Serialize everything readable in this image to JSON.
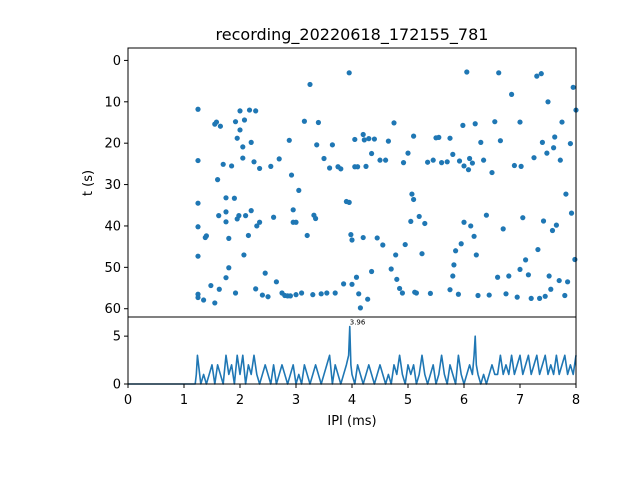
{
  "chart_data": [
    {
      "type": "scatter",
      "title": "recording_20220618_172155_781",
      "xlabel": "",
      "ylabel": "t (s)",
      "xlim": [
        0,
        8
      ],
      "ylim": [
        62,
        -3
      ],
      "y_inverted": true,
      "yticks": [
        0,
        10,
        20,
        30,
        40,
        50,
        60
      ],
      "yticklabels": [
        "0",
        "10",
        "20",
        "30",
        "40",
        "50",
        "60"
      ],
      "marker_color": "#1f77b4",
      "points": [
        [
          1.25,
          11.8
        ],
        [
          1.25,
          24.2
        ],
        [
          1.25,
          34.5
        ],
        [
          1.25,
          40.2
        ],
        [
          1.25,
          47.3
        ],
        [
          1.25,
          56.5
        ],
        [
          1.25,
          57.3
        ],
        [
          1.35,
          57.9
        ],
        [
          1.38,
          42.8
        ],
        [
          1.4,
          42.4
        ],
        [
          1.48,
          54.4
        ],
        [
          1.55,
          15.4
        ],
        [
          1.55,
          58.6
        ],
        [
          1.58,
          14.9
        ],
        [
          1.6,
          28.8
        ],
        [
          1.62,
          37.5
        ],
        [
          1.63,
          55.3
        ],
        [
          1.65,
          15.9
        ],
        [
          1.7,
          25.1
        ],
        [
          1.75,
          52.5
        ],
        [
          1.75,
          33.2
        ],
        [
          1.75,
          36.6
        ],
        [
          1.75,
          39.0
        ],
        [
          1.8,
          43.0
        ],
        [
          1.8,
          50.1
        ],
        [
          1.85,
          25.5
        ],
        [
          1.9,
          33.3
        ],
        [
          1.92,
          56.2
        ],
        [
          1.92,
          14.8
        ],
        [
          1.95,
          38.3
        ],
        [
          1.95,
          18.8
        ],
        [
          1.98,
          37.5
        ],
        [
          2.0,
          12.2
        ],
        [
          2.0,
          16.8
        ],
        [
          2.05,
          20.9
        ],
        [
          2.05,
          23.6
        ],
        [
          2.07,
          47.0
        ],
        [
          2.08,
          14.4
        ],
        [
          2.1,
          37.5
        ],
        [
          2.15,
          42.3
        ],
        [
          2.17,
          12.0
        ],
        [
          2.2,
          36.3
        ],
        [
          2.2,
          19.8
        ],
        [
          2.25,
          24.5
        ],
        [
          2.28,
          12.2
        ],
        [
          2.28,
          55.2
        ],
        [
          2.3,
          40.0
        ],
        [
          2.35,
          26.1
        ],
        [
          2.35,
          39.1
        ],
        [
          2.4,
          56.7
        ],
        [
          2.45,
          51.4
        ],
        [
          2.5,
          57.1
        ],
        [
          2.55,
          25.6
        ],
        [
          2.6,
          37.9
        ],
        [
          2.65,
          53.5
        ],
        [
          2.7,
          23.8
        ],
        [
          2.75,
          56.2
        ],
        [
          2.8,
          56.8
        ],
        [
          2.85,
          56.9
        ],
        [
          2.88,
          19.3
        ],
        [
          2.9,
          56.9
        ],
        [
          2.92,
          27.7
        ],
        [
          2.95,
          36.1
        ],
        [
          2.95,
          39.1
        ],
        [
          3.0,
          39.1
        ],
        [
          3.0,
          56.6
        ],
        [
          3.05,
          31.4
        ],
        [
          3.1,
          56.2
        ],
        [
          3.15,
          14.7
        ],
        [
          3.2,
          42.3
        ],
        [
          3.25,
          5.8
        ],
        [
          3.3,
          56.6
        ],
        [
          3.32,
          37.4
        ],
        [
          3.35,
          38.2
        ],
        [
          3.37,
          20.4
        ],
        [
          3.4,
          15.0
        ],
        [
          3.45,
          56.4
        ],
        [
          3.5,
          23.7
        ],
        [
          3.55,
          56.2
        ],
        [
          3.6,
          26.0
        ],
        [
          3.65,
          20.4
        ],
        [
          3.7,
          56.2
        ],
        [
          3.75,
          25.7
        ],
        [
          3.8,
          26.2
        ],
        [
          3.85,
          54.0
        ],
        [
          3.9,
          34.1
        ],
        [
          3.95,
          3.0
        ],
        [
          3.95,
          34.3
        ],
        [
          3.98,
          42.1
        ],
        [
          4.0,
          43.4
        ],
        [
          4.0,
          54.1
        ],
        [
          4.05,
          19.1
        ],
        [
          4.05,
          25.7
        ],
        [
          4.08,
          52.4
        ],
        [
          4.1,
          25.7
        ],
        [
          4.12,
          56.4
        ],
        [
          4.15,
          59.8
        ],
        [
          4.2,
          17.9
        ],
        [
          4.2,
          42.8
        ],
        [
          4.22,
          19.2
        ],
        [
          4.25,
          25.6
        ],
        [
          4.28,
          57.7
        ],
        [
          4.3,
          18.9
        ],
        [
          4.35,
          22.5
        ],
        [
          4.35,
          51.0
        ],
        [
          4.4,
          19.0
        ],
        [
          4.45,
          42.9
        ],
        [
          4.5,
          24.1
        ],
        [
          4.55,
          44.6
        ],
        [
          4.6,
          24.1
        ],
        [
          4.65,
          19.5
        ],
        [
          4.7,
          50.4
        ],
        [
          4.75,
          15.1
        ],
        [
          4.78,
          47.0
        ],
        [
          4.8,
          52.9
        ],
        [
          4.85,
          55.1
        ],
        [
          4.9,
          56.2
        ],
        [
          4.92,
          24.7
        ],
        [
          4.95,
          44.5
        ],
        [
          5.0,
          22.4
        ],
        [
          5.05,
          38.9
        ],
        [
          5.07,
          32.3
        ],
        [
          5.1,
          18.3
        ],
        [
          5.1,
          33.6
        ],
        [
          5.12,
          56.0
        ],
        [
          5.15,
          56.2
        ],
        [
          5.2,
          37.7
        ],
        [
          5.25,
          46.7
        ],
        [
          5.3,
          39.4
        ],
        [
          5.35,
          24.6
        ],
        [
          5.4,
          56.3
        ],
        [
          5.45,
          24.1
        ],
        [
          5.5,
          18.7
        ],
        [
          5.55,
          18.6
        ],
        [
          5.6,
          24.7
        ],
        [
          5.7,
          24.5
        ],
        [
          5.75,
          18.8
        ],
        [
          5.75,
          55.4
        ],
        [
          5.8,
          52.1
        ],
        [
          5.8,
          22.7
        ],
        [
          5.82,
          49.4
        ],
        [
          5.85,
          46.0
        ],
        [
          5.9,
          56.5
        ],
        [
          5.92,
          24.3
        ],
        [
          5.95,
          44.3
        ],
        [
          5.98,
          15.7
        ],
        [
          6.0,
          39.1
        ],
        [
          6.0,
          25.5
        ],
        [
          6.05,
          2.8
        ],
        [
          6.08,
          26.4
        ],
        [
          6.1,
          23.7
        ],
        [
          6.12,
          40.0
        ],
        [
          6.15,
          24.8
        ],
        [
          6.18,
          42.5
        ],
        [
          6.2,
          15.3
        ],
        [
          6.22,
          47.0
        ],
        [
          6.25,
          56.8
        ],
        [
          6.3,
          19.8
        ],
        [
          6.35,
          24.1
        ],
        [
          6.4,
          37.4
        ],
        [
          6.45,
          56.7
        ],
        [
          6.5,
          27.1
        ],
        [
          6.55,
          14.8
        ],
        [
          6.6,
          52.4
        ],
        [
          6.62,
          3.0
        ],
        [
          6.65,
          19.4
        ],
        [
          6.7,
          40.7
        ],
        [
          6.75,
          56.4
        ],
        [
          6.8,
          52.1
        ],
        [
          6.85,
          8.2
        ],
        [
          6.9,
          25.4
        ],
        [
          6.95,
          57.2
        ],
        [
          7.0,
          50.5
        ],
        [
          7.0,
          14.9
        ],
        [
          7.02,
          25.6
        ],
        [
          7.05,
          38.0
        ],
        [
          7.1,
          48.2
        ],
        [
          7.15,
          51.8
        ],
        [
          7.2,
          57.5
        ],
        [
          7.25,
          23.5
        ],
        [
          7.3,
          3.8
        ],
        [
          7.32,
          45.7
        ],
        [
          7.35,
          57.5
        ],
        [
          7.38,
          3.2
        ],
        [
          7.4,
          19.8
        ],
        [
          7.42,
          38.8
        ],
        [
          7.45,
          57.0
        ],
        [
          7.48,
          22.4
        ],
        [
          7.5,
          10.0
        ],
        [
          7.52,
          52.1
        ],
        [
          7.55,
          55.3
        ],
        [
          7.58,
          41.1
        ],
        [
          7.6,
          21.1
        ],
        [
          7.62,
          18.5
        ],
        [
          7.65,
          39.8
        ],
        [
          7.7,
          53.2
        ],
        [
          7.72,
          24.1
        ],
        [
          7.75,
          14.9
        ],
        [
          7.8,
          56.8
        ],
        [
          7.82,
          32.3
        ],
        [
          7.85,
          53.5
        ],
        [
          7.9,
          20.1
        ],
        [
          7.92,
          36.9
        ],
        [
          7.95,
          6.5
        ],
        [
          7.98,
          48.1
        ],
        [
          8.0,
          12.0
        ]
      ]
    },
    {
      "type": "line",
      "xlabel": "IPI (ms)",
      "ylabel": "",
      "xlim": [
        0,
        8
      ],
      "ylim": [
        0,
        7
      ],
      "xticks": [
        0,
        1,
        2,
        3,
        4,
        5,
        6,
        7,
        8
      ],
      "xticklabels": [
        "0",
        "1",
        "2",
        "3",
        "4",
        "5",
        "6",
        "7",
        "8"
      ],
      "yticks": [
        0,
        5
      ],
      "yticklabels": [
        "0",
        "5"
      ],
      "line_color": "#1f77b4",
      "peak_annotation": {
        "x": 3.96,
        "y": 6,
        "label": "3.96"
      },
      "series": [
        {
          "x": [
            0,
            1.2,
            1.22,
            1.24,
            1.26,
            1.28,
            1.3,
            1.35,
            1.4,
            1.45,
            1.5,
            1.55,
            1.6,
            1.65,
            1.7,
            1.75,
            1.8,
            1.85,
            1.9,
            1.95,
            2.0,
            2.05,
            2.1,
            2.15,
            2.2,
            2.25,
            2.3,
            2.35,
            2.4,
            2.45,
            2.5,
            2.55,
            2.6,
            2.65,
            2.7,
            2.75,
            2.8,
            2.85,
            2.9,
            2.95,
            3.0,
            3.05,
            3.1,
            3.15,
            3.2,
            3.25,
            3.3,
            3.35,
            3.4,
            3.45,
            3.5,
            3.55,
            3.6,
            3.65,
            3.7,
            3.75,
            3.8,
            3.85,
            3.9,
            3.94,
            3.96,
            3.98,
            4.0,
            4.05,
            4.1,
            4.15,
            4.2,
            4.25,
            4.3,
            4.35,
            4.4,
            4.45,
            4.5,
            4.55,
            4.6,
            4.65,
            4.7,
            4.75,
            4.8,
            4.85,
            4.9,
            4.95,
            5.0,
            5.05,
            5.1,
            5.15,
            5.2,
            5.25,
            5.3,
            5.35,
            5.4,
            5.45,
            5.5,
            5.55,
            5.6,
            5.65,
            5.7,
            5.75,
            5.8,
            5.85,
            5.9,
            5.95,
            6.0,
            6.05,
            6.1,
            6.15,
            6.18,
            6.2,
            6.22,
            6.25,
            6.3,
            6.35,
            6.4,
            6.45,
            6.5,
            6.55,
            6.6,
            6.65,
            6.7,
            6.75,
            6.8,
            6.85,
            6.9,
            6.95,
            7.0,
            7.05,
            7.1,
            7.15,
            7.2,
            7.25,
            7.3,
            7.35,
            7.4,
            7.45,
            7.5,
            7.55,
            7.6,
            7.65,
            7.7,
            7.75,
            7.8,
            7.85,
            7.9,
            7.95,
            8.0
          ],
          "y": [
            0,
            0,
            1,
            3,
            2,
            1,
            0,
            1,
            0,
            1,
            2,
            0,
            2,
            1,
            0,
            3,
            1,
            2,
            0,
            3,
            1,
            3,
            0,
            2,
            1,
            3,
            1,
            0,
            1,
            2,
            1,
            0,
            2,
            0,
            1,
            2,
            1,
            0,
            1,
            2,
            0,
            1,
            0,
            2,
            1,
            0,
            1,
            2,
            1,
            0,
            1,
            2,
            3,
            0,
            2,
            1,
            0,
            1,
            2,
            3,
            6,
            2,
            1,
            0,
            2,
            1,
            0,
            1,
            2,
            1,
            0,
            1,
            2,
            1,
            0,
            1,
            0,
            2,
            1,
            3,
            1,
            0,
            2,
            1,
            2,
            0,
            1,
            3,
            1,
            0,
            1,
            2,
            0,
            1,
            3,
            1,
            0,
            2,
            1,
            0,
            3,
            1,
            0,
            1,
            2,
            1,
            3,
            5,
            2,
            1,
            0,
            1,
            0,
            1,
            2,
            1,
            1,
            3,
            1,
            2,
            1,
            3,
            1,
            2,
            3,
            1,
            2,
            3,
            1,
            2,
            3,
            1,
            2,
            3,
            1,
            2,
            1,
            3,
            1,
            2,
            3,
            1,
            2,
            1,
            3
          ]
        }
      ]
    }
  ]
}
